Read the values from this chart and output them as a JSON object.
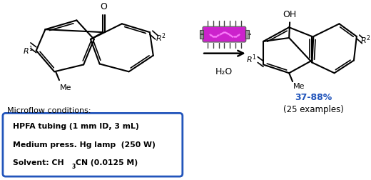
{
  "bg_color": "#ffffff",
  "lamp_color": "#cc22cc",
  "lamp_edge_color": "#888888",
  "lamp_cap_color": "#999999",
  "yield_text": "37-88%",
  "yield_color": "#2255bb",
  "examples_text": "(25 examples)",
  "box_border_color": "#2255bb",
  "microflow_label": "Microflow conditions:",
  "box_line1": "HPFA tubing (1 mm ID, 3 mL)",
  "box_line2": "Medium press. Hg lamp  (250 W)",
  "h2o": "H₂O",
  "arrow_color": "#000000"
}
